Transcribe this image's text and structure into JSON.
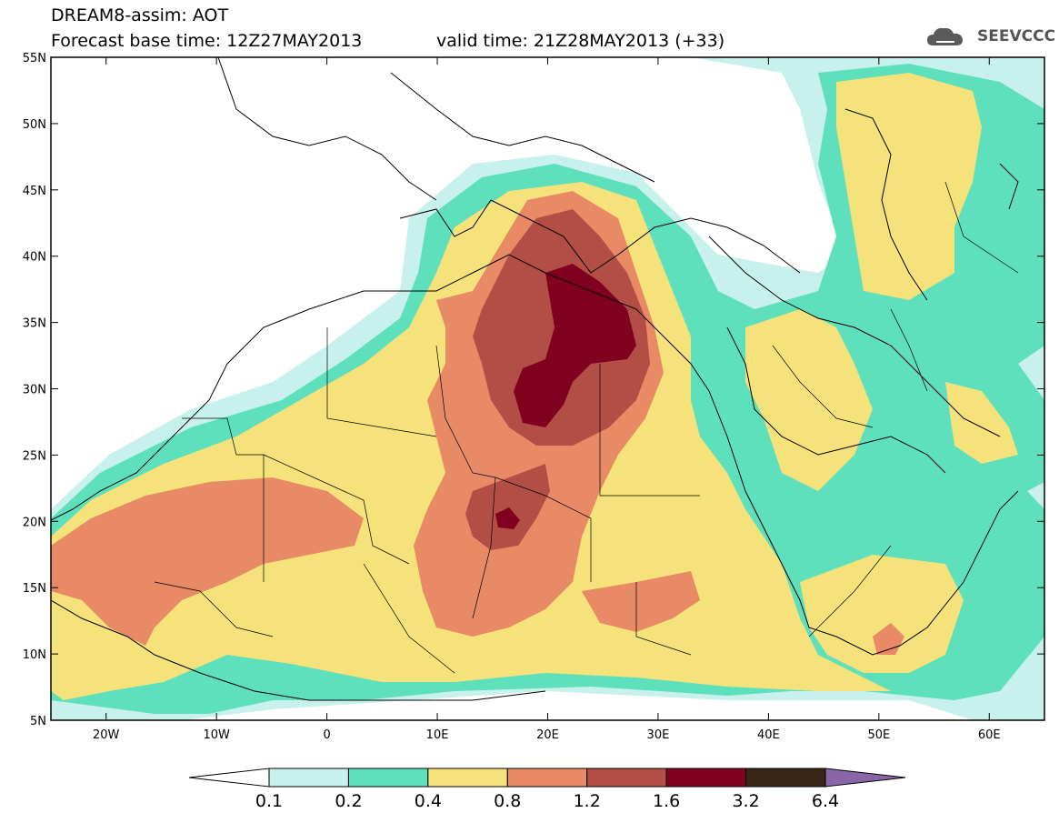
{
  "header": {
    "title": "DREAM8-assim: AOT",
    "base_time": "Forecast base time: 12Z27MAY2013",
    "valid_time": "valid time: 21Z28MAY2013 (+33)"
  },
  "logo": {
    "text": "SEEVCCC",
    "icon": "cloud-icon"
  },
  "map": {
    "lon_range": [
      -25,
      65
    ],
    "lat_range": [
      5,
      55
    ],
    "lat_ticks": [
      "55N",
      "50N",
      "45N",
      "40N",
      "35N",
      "30N",
      "25N",
      "20N",
      "15N",
      "10N",
      "5N"
    ],
    "lon_ticks": [
      "20W",
      "10W",
      "0",
      "10E",
      "20E",
      "30E",
      "40E",
      "50E",
      "60E"
    ],
    "variable": "AOT"
  },
  "colorbar": {
    "labels": [
      "0.1",
      "0.2",
      "0.4",
      "0.8",
      "1.2",
      "1.6",
      "3.2",
      "6.4"
    ],
    "colors": [
      "#ffffff",
      "#c8f0ec",
      "#5ee0bc",
      "#f5e27a",
      "#e88a66",
      "#b24e46",
      "#800020",
      "#3b2616",
      "#8a66a8"
    ]
  }
}
